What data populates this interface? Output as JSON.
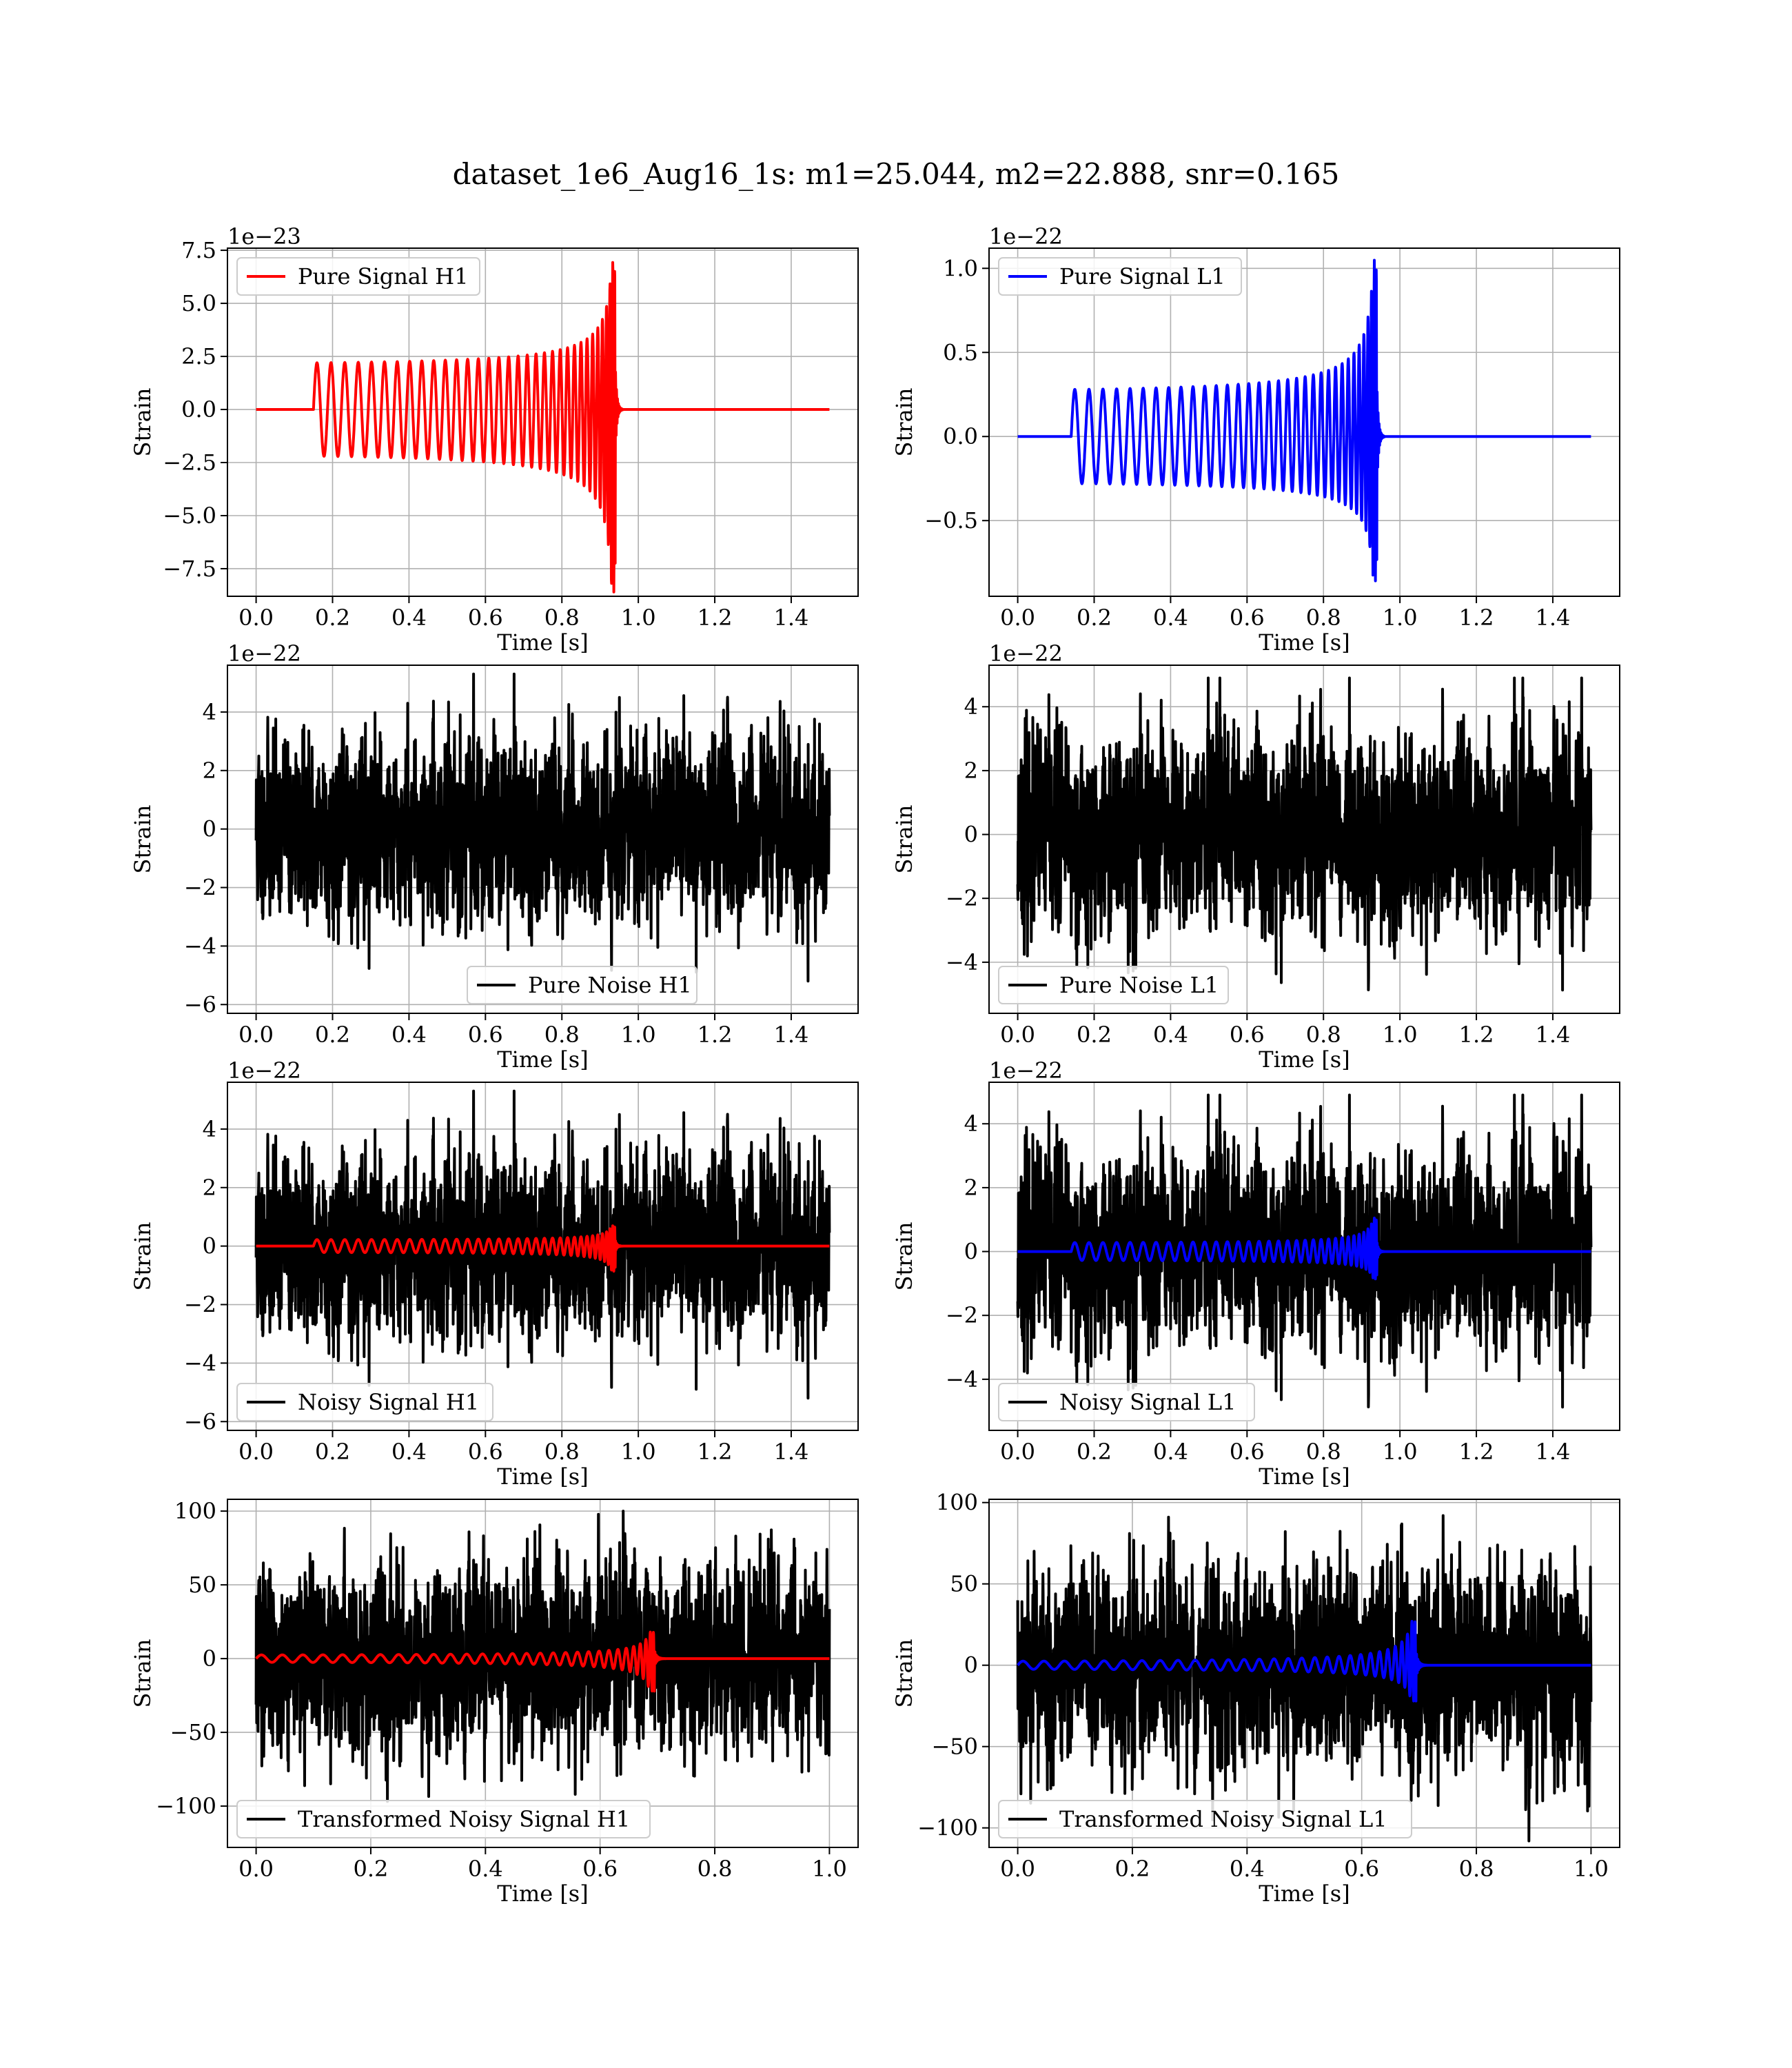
{
  "figure": {
    "title": "dataset_1e6_Aug16_1s: m1=25.044, m2=22.888, snr=0.165"
  },
  "chart_data": [
    {
      "id": "pure-signal-h1",
      "type": "line",
      "ylabel": "Strain",
      "xlabel": "Time [s]",
      "offset_label": "1e−23",
      "xlim": [
        -0.075,
        1.575
      ],
      "ylim": [
        -8.8,
        7.6
      ],
      "xticks": [
        0.0,
        0.2,
        0.4,
        0.6,
        0.8,
        1.0,
        1.2,
        1.4
      ],
      "xtick_labels": [
        "0.0",
        "0.2",
        "0.4",
        "0.6",
        "0.8",
        "1.0",
        "1.2",
        "1.4"
      ],
      "yticks": [
        -7.5,
        -5.0,
        -2.5,
        0.0,
        2.5,
        5.0,
        7.5
      ],
      "ytick_labels": [
        "−7.5",
        "−5.0",
        "−2.5",
        "0.0",
        "2.5",
        "5.0",
        "7.5"
      ],
      "grid": true,
      "legend_loc": "upper-left",
      "series": [
        {
          "name": "Pure Signal H1",
          "color": "#ff0000",
          "kind": "chirp",
          "t0": 0.0,
          "t_start": 0.15,
          "t_merge": 0.94,
          "t_end": 1.5,
          "amp_start": 2.2,
          "amp_peak_pos": 7.0,
          "amp_peak_neg": -8.6,
          "cycles": 34
        }
      ]
    },
    {
      "id": "pure-signal-l1",
      "type": "line",
      "ylabel": "Strain",
      "xlabel": "Time [s]",
      "offset_label": "1e−22",
      "xlim": [
        -0.075,
        1.575
      ],
      "ylim": [
        -0.95,
        1.12
      ],
      "xticks": [
        0.0,
        0.2,
        0.4,
        0.6,
        0.8,
        1.0,
        1.2,
        1.4
      ],
      "xtick_labels": [
        "0.0",
        "0.2",
        "0.4",
        "0.6",
        "0.8",
        "1.0",
        "1.2",
        "1.4"
      ],
      "yticks": [
        -0.5,
        0.0,
        0.5,
        1.0
      ],
      "ytick_labels": [
        "−0.5",
        "0.0",
        "0.5",
        "1.0"
      ],
      "grid": true,
      "legend_loc": "upper-left",
      "series": [
        {
          "name": "Pure Signal L1",
          "color": "#0000ff",
          "kind": "chirp",
          "t0": 0.0,
          "t_start": 0.14,
          "t_merge": 0.94,
          "t_end": 1.5,
          "amp_start": 0.28,
          "amp_peak_pos": 1.05,
          "amp_peak_neg": -0.86,
          "cycles": 34
        }
      ]
    },
    {
      "id": "pure-noise-h1",
      "type": "line",
      "ylabel": "Strain",
      "xlabel": "Time [s]",
      "offset_label": "1e−22",
      "xlim": [
        -0.075,
        1.575
      ],
      "ylim": [
        -6.3,
        5.6
      ],
      "xticks": [
        0.0,
        0.2,
        0.4,
        0.6,
        0.8,
        1.0,
        1.2,
        1.4
      ],
      "xtick_labels": [
        "0.0",
        "0.2",
        "0.4",
        "0.6",
        "0.8",
        "1.0",
        "1.2",
        "1.4"
      ],
      "yticks": [
        -6,
        -4,
        -2,
        0,
        2,
        4
      ],
      "ytick_labels": [
        "−6",
        "−4",
        "−2",
        "0",
        "2",
        "4"
      ],
      "grid": true,
      "legend_loc": "lower-center",
      "series": [
        {
          "name": "Pure Noise H1",
          "color": "#000000",
          "kind": "noise",
          "t_start": 0.0,
          "t_end": 1.5,
          "sigma": 1.5,
          "max": 5.3,
          "min": -5.2,
          "seed": 11
        }
      ]
    },
    {
      "id": "pure-noise-l1",
      "type": "line",
      "ylabel": "Strain",
      "xlabel": "Time [s]",
      "offset_label": "1e−22",
      "xlim": [
        -0.075,
        1.575
      ],
      "ylim": [
        -5.6,
        5.3
      ],
      "xticks": [
        0.0,
        0.2,
        0.4,
        0.6,
        0.8,
        1.0,
        1.2,
        1.4
      ],
      "xtick_labels": [
        "0.0",
        "0.2",
        "0.4",
        "0.6",
        "0.8",
        "1.0",
        "1.2",
        "1.4"
      ],
      "yticks": [
        -4,
        -2,
        0,
        2,
        4
      ],
      "ytick_labels": [
        "−4",
        "−2",
        "0",
        "2",
        "4"
      ],
      "grid": true,
      "legend_loc": "lower-left",
      "series": [
        {
          "name": "Pure Noise L1",
          "color": "#000000",
          "kind": "noise",
          "t_start": 0.0,
          "t_end": 1.5,
          "sigma": 1.5,
          "max": 4.9,
          "min": -5.2,
          "seed": 23
        }
      ]
    },
    {
      "id": "noisy-signal-h1",
      "type": "line",
      "ylabel": "Strain",
      "xlabel": "Time [s]",
      "offset_label": "1e−22",
      "xlim": [
        -0.075,
        1.575
      ],
      "ylim": [
        -6.3,
        5.6
      ],
      "xticks": [
        0.0,
        0.2,
        0.4,
        0.6,
        0.8,
        1.0,
        1.2,
        1.4
      ],
      "xtick_labels": [
        "0.0",
        "0.2",
        "0.4",
        "0.6",
        "0.8",
        "1.0",
        "1.2",
        "1.4"
      ],
      "yticks": [
        -6,
        -4,
        -2,
        0,
        2,
        4
      ],
      "ytick_labels": [
        "−6",
        "−4",
        "−2",
        "0",
        "2",
        "4"
      ],
      "grid": true,
      "legend_loc": "lower-left",
      "series": [
        {
          "name": "Noisy Signal H1",
          "color": "#000000",
          "kind": "noise",
          "t_start": 0.0,
          "t_end": 1.5,
          "sigma": 1.5,
          "max": 5.3,
          "min": -5.2,
          "seed": 11
        },
        {
          "color": "#ff0000",
          "kind": "chirp",
          "t0": 0.0,
          "t_start": 0.15,
          "t_merge": 0.94,
          "t_end": 1.5,
          "amp_start": 0.22,
          "amp_peak_pos": 0.7,
          "amp_peak_neg": -0.86,
          "cycles": 34
        }
      ]
    },
    {
      "id": "noisy-signal-l1",
      "type": "line",
      "ylabel": "Strain",
      "xlabel": "Time [s]",
      "offset_label": "1e−22",
      "xlim": [
        -0.075,
        1.575
      ],
      "ylim": [
        -5.6,
        5.3
      ],
      "xticks": [
        0.0,
        0.2,
        0.4,
        0.6,
        0.8,
        1.0,
        1.2,
        1.4
      ],
      "xtick_labels": [
        "0.0",
        "0.2",
        "0.4",
        "0.6",
        "0.8",
        "1.0",
        "1.2",
        "1.4"
      ],
      "yticks": [
        -4,
        -2,
        0,
        2,
        4
      ],
      "ytick_labels": [
        "−4",
        "−2",
        "0",
        "2",
        "4"
      ],
      "grid": true,
      "legend_loc": "lower-left",
      "series": [
        {
          "name": "Noisy Signal L1",
          "color": "#000000",
          "kind": "noise",
          "t_start": 0.0,
          "t_end": 1.5,
          "sigma": 1.5,
          "max": 4.9,
          "min": -5.2,
          "seed": 23
        },
        {
          "color": "#0000ff",
          "kind": "chirp",
          "t0": 0.0,
          "t_start": 0.14,
          "t_merge": 0.94,
          "t_end": 1.5,
          "amp_start": 0.28,
          "amp_peak_pos": 1.05,
          "amp_peak_neg": -0.86,
          "cycles": 34
        }
      ]
    },
    {
      "id": "transformed-noisy-signal-h1",
      "type": "line",
      "ylabel": "Strain",
      "xlabel": "Time [s]",
      "offset_label": "",
      "xlim": [
        -0.05,
        1.05
      ],
      "ylim": [
        -128,
        108
      ],
      "xticks": [
        0.0,
        0.2,
        0.4,
        0.6,
        0.8,
        1.0
      ],
      "xtick_labels": [
        "0.0",
        "0.2",
        "0.4",
        "0.6",
        "0.8",
        "1.0"
      ],
      "yticks": [
        -100,
        -50,
        0,
        50,
        100
      ],
      "ytick_labels": [
        "−100",
        "−50",
        "0",
        "50",
        "100"
      ],
      "grid": true,
      "legend_loc": "lower-left",
      "series": [
        {
          "name": "Transformed Noisy Signal H1",
          "color": "#000000",
          "kind": "noise",
          "t_start": 0.0,
          "t_end": 1.0,
          "sigma": 30,
          "max": 100,
          "min": -118,
          "seed": 37
        },
        {
          "color": "#ff0000",
          "kind": "chirp",
          "t0": 0.0,
          "t_start": 0.0,
          "t_merge": 0.695,
          "t_end": 1.0,
          "amp_start": 2.5,
          "amp_peak_pos": 18,
          "amp_peak_neg": -22,
          "cycles": 30
        }
      ]
    },
    {
      "id": "transformed-noisy-signal-l1",
      "type": "line",
      "ylabel": "Strain",
      "xlabel": "Time [s]",
      "offset_label": "",
      "xlim": [
        -0.05,
        1.05
      ],
      "ylim": [
        -112,
        102
      ],
      "xticks": [
        0.0,
        0.2,
        0.4,
        0.6,
        0.8,
        1.0
      ],
      "xtick_labels": [
        "0.0",
        "0.2",
        "0.4",
        "0.6",
        "0.8",
        "1.0"
      ],
      "yticks": [
        -100,
        -50,
        0,
        50,
        100
      ],
      "ytick_labels": [
        "−100",
        "−50",
        "0",
        "50",
        "100"
      ],
      "grid": true,
      "legend_loc": "lower-left",
      "series": [
        {
          "name": "Transformed Noisy Signal L1",
          "color": "#000000",
          "kind": "noise",
          "t_start": 0.0,
          "t_end": 1.0,
          "sigma": 30,
          "max": 92,
          "min": -108,
          "seed": 53
        },
        {
          "color": "#0000ff",
          "kind": "chirp",
          "t0": 0.0,
          "t_start": 0.0,
          "t_merge": 0.695,
          "t_end": 1.0,
          "amp_start": 2.5,
          "amp_peak_pos": 27,
          "amp_peak_neg": -22,
          "cycles": 30
        }
      ]
    }
  ]
}
